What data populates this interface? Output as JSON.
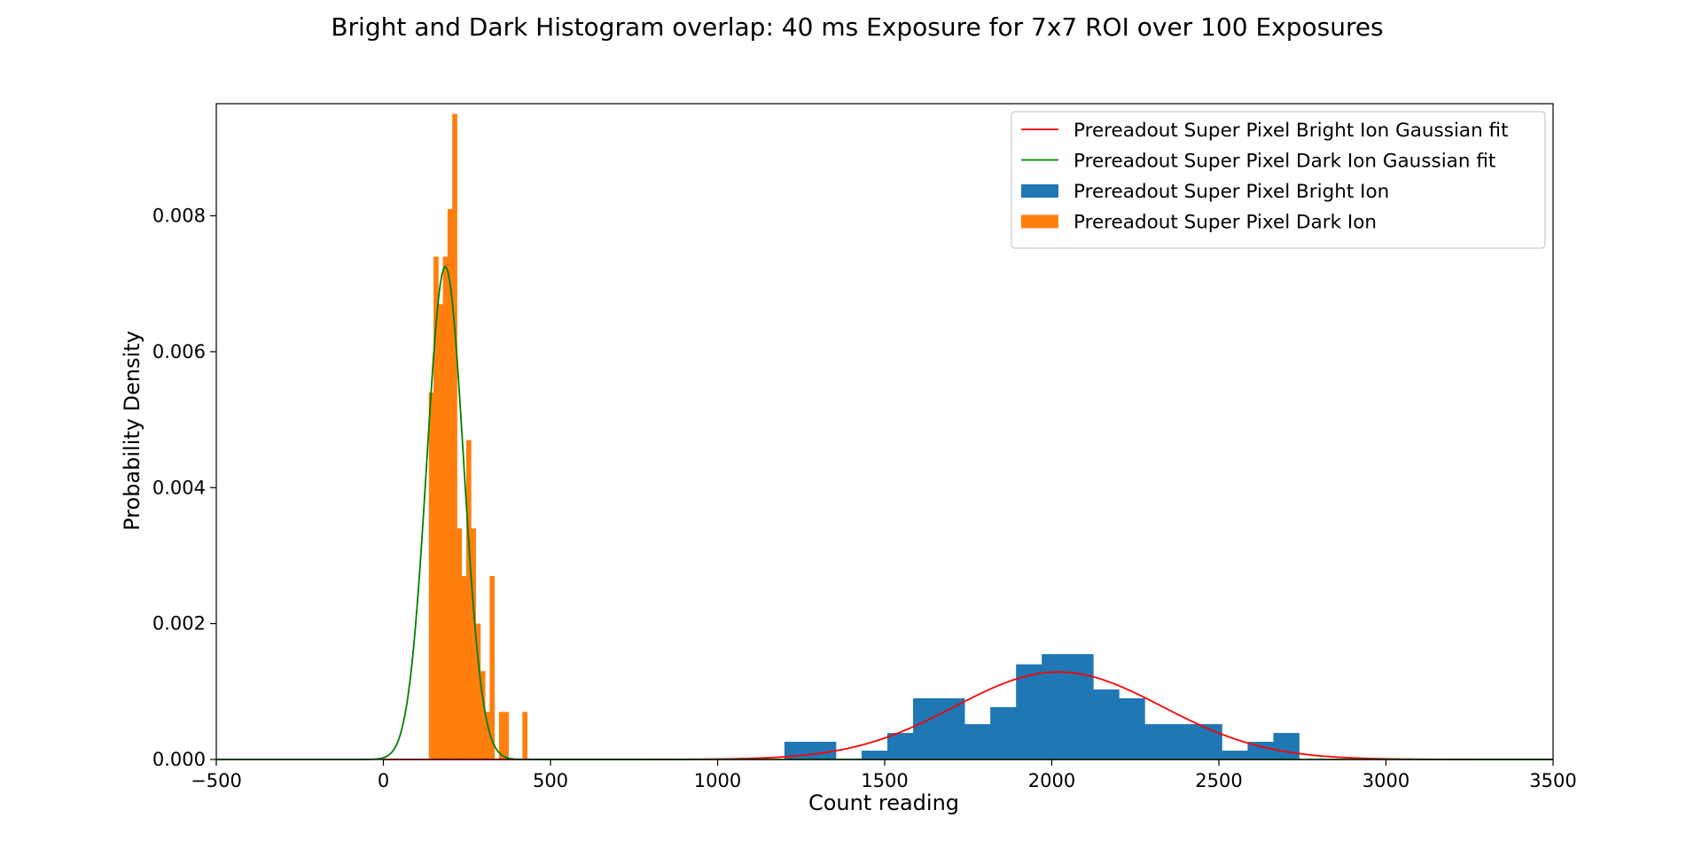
{
  "chart_data": {
    "type": "histogram",
    "title": "Bright and Dark Histogram overlap: 40 ms Exposure for 7x7 ROI over 100 Exposures",
    "xlabel": "Count reading",
    "ylabel": "Probability Density",
    "xlim": [
      -500,
      3500
    ],
    "ylim": [
      0,
      0.00965
    ],
    "xticks": [
      -500,
      0,
      500,
      1000,
      1500,
      2000,
      2500,
      3000,
      3500
    ],
    "xtick_labels": [
      "−500",
      "0",
      "500",
      "1000",
      "1500",
      "2000",
      "2500",
      "3000",
      "3500"
    ],
    "yticks": [
      0,
      0.002,
      0.004,
      0.006,
      0.008
    ],
    "ytick_labels": [
      "0.000",
      "0.002",
      "0.004",
      "0.006",
      "0.008"
    ],
    "grid": false,
    "legend_position": "top-right",
    "colors": {
      "bright_hist": "#1f77b4",
      "dark_hist": "#ff7f0e",
      "bright_fit": "#ff0000",
      "dark_fit": "#008000"
    },
    "legend": [
      {
        "label": "Prereadout Super Pixel Bright Ion Gaussian fit",
        "kind": "line",
        "color": "#ff0000"
      },
      {
        "label": "Prereadout Super Pixel Dark Ion Gaussian fit",
        "kind": "line",
        "color": "#008000"
      },
      {
        "label": "Prereadout Super Pixel Bright Ion",
        "kind": "patch",
        "color": "#1f77b4"
      },
      {
        "label": "Prereadout Super Pixel Dark Ion",
        "kind": "patch",
        "color": "#ff7f0e"
      }
    ],
    "series": [
      {
        "name": "Prereadout Super Pixel Bright Ion",
        "kind": "hist",
        "color": "#1f77b4",
        "bin_edges": [
          1200,
          1277,
          1354,
          1431,
          1508,
          1585,
          1662,
          1739,
          1816,
          1893,
          1970,
          2047,
          2124,
          2201,
          2278,
          2355,
          2432,
          2509,
          2586,
          2663,
          2740
        ],
        "density": [
          0.00026,
          0.00026,
          0,
          0.00013,
          0.00039,
          0.0009,
          0.0009,
          0.00052,
          0.00077,
          0.0014,
          0.00155,
          0.00155,
          0.00103,
          0.0009,
          0.00052,
          0.00052,
          0.00052,
          0.00013,
          0.00026,
          0.00039
        ]
      },
      {
        "name": "Prereadout Super Pixel Dark Ion",
        "kind": "hist",
        "color": "#ff7f0e",
        "bin_edges": [
          136,
          150,
          164,
          178,
          192,
          206,
          220,
          234,
          248,
          262,
          276,
          290,
          304,
          318,
          332,
          346,
          360,
          374,
          388,
          402,
          416,
          430
        ],
        "density": [
          0.0054,
          0.0074,
          0.0067,
          0.0074,
          0.0081,
          0.0095,
          0.0034,
          0.0027,
          0.0047,
          0.0034,
          0.002,
          0.0013,
          0.0007,
          0.0027,
          0,
          0.0007,
          0.0007,
          0,
          0,
          0,
          0.0007
        ]
      },
      {
        "name": "Prereadout Super Pixel Bright Ion Gaussian fit",
        "kind": "gaussian",
        "color": "#ff0000",
        "mean": 2020,
        "sigma": 310,
        "x_range": [
          0,
          3500
        ]
      },
      {
        "name": "Prereadout Super Pixel Dark Ion Gaussian fit",
        "kind": "gaussian",
        "color": "#008000",
        "mean": 185,
        "sigma": 55,
        "x_range": [
          -500,
          3500
        ]
      }
    ]
  }
}
